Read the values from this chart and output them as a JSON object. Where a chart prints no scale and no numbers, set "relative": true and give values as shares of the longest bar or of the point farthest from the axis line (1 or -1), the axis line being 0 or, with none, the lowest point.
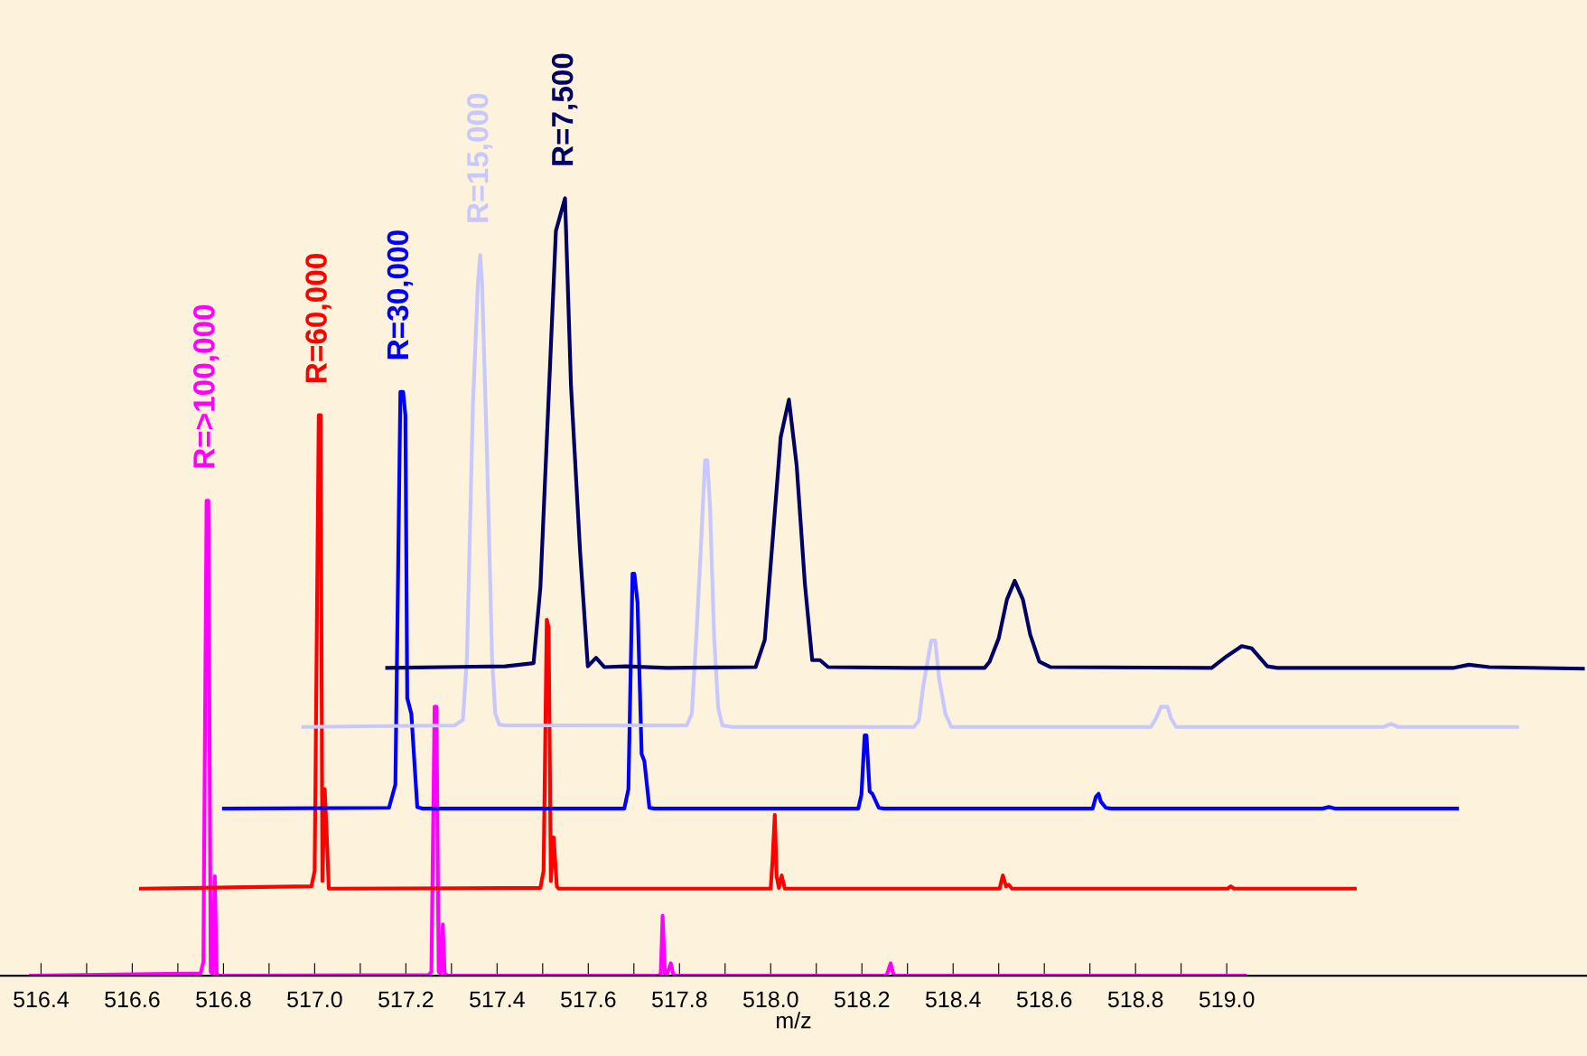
{
  "chart_data": {
    "type": "line",
    "relative": true,
    "xlabel": "m/z",
    "xlim": [
      516.31,
      519.79
    ],
    "xticks": [
      {
        "value": 516.4,
        "label": "516.4"
      },
      {
        "value": 516.5,
        "label": null
      },
      {
        "value": 516.6,
        "label": "516.6"
      },
      {
        "value": 516.7,
        "label": null
      },
      {
        "value": 516.8,
        "label": "516.8"
      },
      {
        "value": 516.9,
        "label": null
      },
      {
        "value": 517.0,
        "label": "517.0"
      },
      {
        "value": 517.1,
        "label": null
      },
      {
        "value": 517.2,
        "label": "517.2"
      },
      {
        "value": 517.3,
        "label": null
      },
      {
        "value": 517.4,
        "label": "517.4"
      },
      {
        "value": 517.5,
        "label": null
      },
      {
        "value": 517.6,
        "label": "517.6"
      },
      {
        "value": 517.7,
        "label": null
      },
      {
        "value": 517.8,
        "label": "517.8"
      },
      {
        "value": 517.9,
        "label": null
      },
      {
        "value": 518.0,
        "label": "518.0"
      },
      {
        "value": 518.1,
        "label": null
      },
      {
        "value": 518.2,
        "label": "518.2"
      },
      {
        "value": 518.3,
        "label": null
      },
      {
        "value": 518.4,
        "label": "518.4"
      },
      {
        "value": 518.5,
        "label": null
      },
      {
        "value": 518.6,
        "label": "518.6"
      },
      {
        "value": 518.7,
        "label": null
      },
      {
        "value": 518.8,
        "label": "518.8"
      },
      {
        "value": 518.9,
        "label": null
      },
      {
        "value": 519.0,
        "label": "519.0"
      }
    ],
    "grid": false,
    "legend": false,
    "marker": "none",
    "line_style": "solid",
    "series": [
      {
        "name": "R=>100,000",
        "color": "#ff00ff",
        "x": [
          516.378,
          516.75,
          516.756,
          516.763,
          516.767,
          516.772,
          516.776,
          516.781,
          516.785,
          516.789,
          517.25,
          517.256,
          517.263,
          517.267,
          517.272,
          517.276,
          517.281,
          517.285,
          517.292,
          517.754,
          517.759,
          517.763,
          517.768,
          517.772,
          517.781,
          517.787,
          518.254,
          518.263,
          518.27,
          519.04
        ],
        "values": [
          0,
          0.003,
          0.018,
          0.611,
          0.611,
          0.005,
          0.003,
          0.128,
          0.003,
          0,
          0.001,
          0.005,
          0.346,
          0.346,
          0.005,
          0.003,
          0.066,
          0.003,
          0,
          0,
          0.003,
          0.077,
          0.003,
          0.001,
          0.016,
          0,
          0,
          0.016,
          0,
          0
        ]
      },
      {
        "name": "R=60,000",
        "color": "#ff0000",
        "x": [
          516.619,
          516.993,
          517.0,
          517.009,
          517.013,
          517.017,
          517.022,
          517.026,
          517.031,
          517.495,
          517.502,
          517.509,
          517.513,
          517.518,
          517.524,
          517.531,
          517.535,
          518.0,
          518.004,
          518.009,
          518.013,
          518.018,
          518.024,
          518.031,
          518.502,
          518.509,
          518.516,
          518.522,
          518.529,
          519.002,
          519.009,
          519.016,
          519.281
        ],
        "values": [
          0.112,
          0.115,
          0.135,
          0.721,
          0.721,
          0.122,
          0.24,
          0.188,
          0.112,
          0.113,
          0.135,
          0.458,
          0.448,
          0.122,
          0.178,
          0.115,
          0.112,
          0.112,
          0.148,
          0.207,
          0.128,
          0.113,
          0.129,
          0.112,
          0.112,
          0.129,
          0.115,
          0.117,
          0.112,
          0.112,
          0.115,
          0.112,
          0.112
        ]
      },
      {
        "name": "R=30,000",
        "color": "#0000ff",
        "x": [
          516.801,
          517.163,
          517.177,
          517.188,
          517.194,
          517.199,
          517.203,
          517.212,
          517.225,
          517.236,
          517.679,
          517.688,
          517.697,
          517.701,
          517.708,
          517.717,
          517.723,
          517.734,
          517.745,
          518.192,
          518.199,
          518.206,
          518.21,
          518.217,
          518.223,
          518.237,
          518.248,
          518.706,
          518.713,
          518.719,
          518.724,
          518.735,
          518.746,
          519.21,
          519.224,
          519.237,
          519.505
        ],
        "values": [
          0.215,
          0.216,
          0.246,
          0.751,
          0.751,
          0.721,
          0.357,
          0.337,
          0.217,
          0.215,
          0.215,
          0.24,
          0.517,
          0.517,
          0.48,
          0.285,
          0.276,
          0.216,
          0.215,
          0.215,
          0.233,
          0.309,
          0.309,
          0.237,
          0.234,
          0.216,
          0.215,
          0.215,
          0.23,
          0.234,
          0.224,
          0.216,
          0.215,
          0.215,
          0.217,
          0.215,
          0.215
        ]
      },
      {
        "name": "R=15,000",
        "color": "#c8c8ff",
        "x": [
          516.975,
          517.307,
          517.325,
          517.334,
          517.347,
          517.358,
          517.363,
          517.367,
          517.378,
          517.389,
          517.396,
          517.405,
          517.418,
          517.816,
          517.827,
          517.838,
          517.847,
          517.856,
          517.861,
          517.867,
          517.876,
          517.885,
          517.894,
          517.916,
          518.314,
          518.325,
          518.334,
          518.352,
          518.361,
          518.369,
          518.383,
          518.396,
          518.834,
          518.845,
          518.856,
          518.87,
          518.878,
          518.889,
          519.343,
          519.361,
          519.376,
          519.637
        ],
        "values": [
          0.32,
          0.322,
          0.329,
          0.409,
          0.734,
          0.891,
          0.927,
          0.891,
          0.669,
          0.409,
          0.337,
          0.323,
          0.322,
          0.322,
          0.337,
          0.448,
          0.552,
          0.663,
          0.663,
          0.604,
          0.435,
          0.344,
          0.322,
          0.32,
          0.32,
          0.328,
          0.37,
          0.431,
          0.431,
          0.383,
          0.337,
          0.32,
          0.32,
          0.331,
          0.346,
          0.346,
          0.331,
          0.32,
          0.32,
          0.324,
          0.32,
          0.32
        ]
      },
      {
        "name": "R=7,500",
        "color": "#000066",
        "x": [
          517.159,
          517.418,
          517.48,
          517.495,
          517.529,
          517.549,
          517.562,
          517.582,
          517.599,
          517.617,
          517.635,
          517.683,
          517.772,
          517.967,
          517.987,
          518.022,
          518.04,
          518.057,
          518.075,
          518.091,
          518.108,
          518.126,
          518.303,
          518.469,
          518.48,
          518.5,
          518.518,
          518.535,
          518.553,
          518.569,
          518.589,
          518.613,
          518.967,
          519.0,
          519.033,
          519.055,
          519.089,
          519.111,
          519.498,
          519.531,
          519.576,
          519.781
        ],
        "values": [
          0.396,
          0.398,
          0.402,
          0.5,
          0.958,
          1,
          0.76,
          0.546,
          0.398,
          0.409,
          0.397,
          0.398,
          0.396,
          0.397,
          0.432,
          0.693,
          0.741,
          0.656,
          0.504,
          0.406,
          0.406,
          0.397,
          0.396,
          0.396,
          0.404,
          0.434,
          0.484,
          0.508,
          0.484,
          0.439,
          0.404,
          0.397,
          0.396,
          0.411,
          0.424,
          0.421,
          0.398,
          0.396,
          0.396,
          0.4,
          0.397,
          0.395
        ]
      }
    ]
  }
}
